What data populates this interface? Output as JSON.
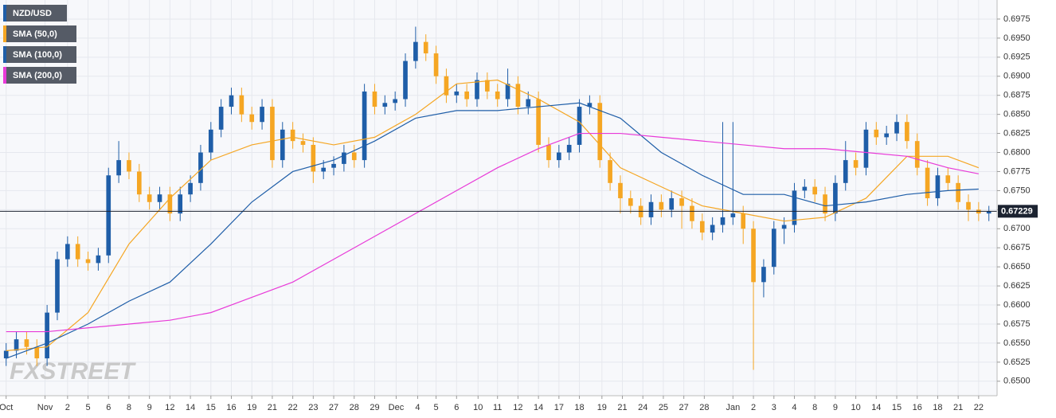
{
  "chart_data": {
    "type": "candlestick",
    "watermark": "FXSTREET",
    "xlim": [
      -0.3,
      48.4
    ],
    "ylim": [
      0.6481,
      0.7
    ],
    "grid": true,
    "legend": "top-left",
    "xticks": [
      {
        "value": 0,
        "label": "Oct"
      },
      {
        "value": 1.9,
        "label": "Nov"
      },
      {
        "value": 3,
        "label": "2"
      },
      {
        "value": 4,
        "label": "5"
      },
      {
        "value": 5,
        "label": "6"
      },
      {
        "value": 6,
        "label": "8"
      },
      {
        "value": 7,
        "label": "9"
      },
      {
        "value": 8,
        "label": "12"
      },
      {
        "value": 9,
        "label": "14"
      },
      {
        "value": 10,
        "label": "15"
      },
      {
        "value": 11,
        "label": "16"
      },
      {
        "value": 12,
        "label": "19"
      },
      {
        "value": 13,
        "label": "21"
      },
      {
        "value": 14,
        "label": "22"
      },
      {
        "value": 15,
        "label": "23"
      },
      {
        "value": 16,
        "label": "27"
      },
      {
        "value": 17,
        "label": "28"
      },
      {
        "value": 18,
        "label": "29"
      },
      {
        "value": 19.05,
        "label": "Dec"
      },
      {
        "value": 20.1,
        "label": "4"
      },
      {
        "value": 21,
        "label": "5"
      },
      {
        "value": 22,
        "label": "6"
      },
      {
        "value": 23.05,
        "label": "10"
      },
      {
        "value": 24,
        "label": "11"
      },
      {
        "value": 25,
        "label": "12"
      },
      {
        "value": 26,
        "label": "14"
      },
      {
        "value": 27,
        "label": "17"
      },
      {
        "value": 28,
        "label": "18"
      },
      {
        "value": 29.1,
        "label": "19"
      },
      {
        "value": 30.1,
        "label": "21"
      },
      {
        "value": 31.1,
        "label": "24"
      },
      {
        "value": 32.1,
        "label": "25"
      },
      {
        "value": 33.1,
        "label": "27"
      },
      {
        "value": 34.1,
        "label": "28"
      },
      {
        "value": 35.5,
        "label": "Jan"
      },
      {
        "value": 36.5,
        "label": "2"
      },
      {
        "value": 37.5,
        "label": "3"
      },
      {
        "value": 38.5,
        "label": "4"
      },
      {
        "value": 39.5,
        "label": "8"
      },
      {
        "value": 40.5,
        "label": "9"
      },
      {
        "value": 41.5,
        "label": "10"
      },
      {
        "value": 42.5,
        "label": "14"
      },
      {
        "value": 43.5,
        "label": "15"
      },
      {
        "value": 44.5,
        "label": "16"
      },
      {
        "value": 45.5,
        "label": "18"
      },
      {
        "value": 46.5,
        "label": "21"
      },
      {
        "value": 47.5,
        "label": "22"
      }
    ],
    "yticks": [
      {
        "value": 0.65,
        "label": "0.6500"
      },
      0.6525,
      {
        "value": 0.655,
        "label": "0.6550"
      },
      0.6575,
      {
        "value": 0.66,
        "label": "0.6600"
      },
      0.6625,
      {
        "value": 0.665,
        "label": "0.6650"
      },
      0.6675,
      {
        "value": 0.67,
        "label": "0.6700"
      },
      0.6725,
      {
        "value": 0.675,
        "label": "0.6750"
      },
      0.6775,
      {
        "value": 0.68,
        "label": "0.6800"
      },
      0.6825,
      {
        "value": 0.685,
        "label": "0.6850"
      },
      0.6875,
      {
        "value": 0.69,
        "label": "0.6900"
      },
      0.6925,
      {
        "value": 0.695,
        "label": "0.6950"
      },
      0.6975
    ],
    "current_price": 0.67229,
    "series": [
      {
        "name": "NZD/USD",
        "color": "#1f5ea8",
        "up_color": "#1f5ea8",
        "down_color": "#f5a623",
        "x": [
          0,
          0.5,
          1,
          1.5,
          2,
          2.5,
          3,
          3.5,
          4,
          4.5,
          5,
          5.5,
          6,
          6.5,
          7,
          7.5,
          8,
          8.5,
          9,
          9.5,
          10,
          10.5,
          11,
          11.5,
          12,
          12.5,
          13,
          13.5,
          14,
          14.5,
          15,
          15.5,
          16,
          16.5,
          17,
          17.5,
          18,
          18.5,
          19,
          19.5,
          20,
          20.5,
          21,
          21.5,
          22,
          22.5,
          23,
          23.5,
          24,
          24.5,
          25,
          25.5,
          26,
          26.5,
          27,
          27.5,
          28,
          28.5,
          29,
          29.5,
          30,
          30.5,
          31,
          31.5,
          32,
          32.5,
          33,
          33.5,
          34,
          34.5,
          35,
          35.5,
          36,
          36.5,
          37,
          37.5,
          38,
          38.5,
          39,
          39.5,
          40,
          40.5,
          41,
          41.5,
          42,
          42.5,
          43,
          43.5,
          44,
          44.5,
          45,
          45.5,
          46,
          46.5,
          47,
          47.5,
          48
        ],
        "open": [
          0.653,
          0.654,
          0.6555,
          0.6545,
          0.653,
          0.659,
          0.666,
          0.668,
          0.666,
          0.6655,
          0.6665,
          0.677,
          0.679,
          0.6775,
          0.6745,
          0.6735,
          0.6745,
          0.672,
          0.6745,
          0.676,
          0.68,
          0.683,
          0.686,
          0.6875,
          0.685,
          0.684,
          0.686,
          0.679,
          0.683,
          0.6815,
          0.681,
          0.6775,
          0.678,
          0.6785,
          0.68,
          0.679,
          0.688,
          0.686,
          0.6865,
          0.687,
          0.692,
          0.6945,
          0.693,
          0.69,
          0.6875,
          0.688,
          0.687,
          0.6895,
          0.688,
          0.687,
          0.689,
          0.686,
          0.687,
          0.681,
          0.679,
          0.68,
          0.681,
          0.686,
          0.6865,
          0.679,
          0.676,
          0.674,
          0.673,
          0.6715,
          0.6735,
          0.6725,
          0.674,
          0.673,
          0.671,
          0.6695,
          0.6705,
          0.6715,
          0.672,
          0.67,
          0.663,
          0.665,
          0.67,
          0.6705,
          0.675,
          0.6755,
          0.6745,
          0.672,
          0.676,
          0.679,
          0.678,
          0.683,
          0.682,
          0.6825,
          0.684,
          0.6815,
          0.678,
          0.674,
          0.677,
          0.676,
          0.6735,
          0.6725,
          0.672
        ],
        "high": [
          0.655,
          0.6565,
          0.6565,
          0.6555,
          0.66,
          0.667,
          0.669,
          0.669,
          0.667,
          0.6675,
          0.678,
          0.6815,
          0.68,
          0.6785,
          0.6755,
          0.6755,
          0.6755,
          0.6755,
          0.677,
          0.681,
          0.684,
          0.687,
          0.6885,
          0.6885,
          0.686,
          0.687,
          0.687,
          0.684,
          0.684,
          0.6825,
          0.682,
          0.679,
          0.6795,
          0.681,
          0.681,
          0.689,
          0.689,
          0.6875,
          0.688,
          0.693,
          0.6965,
          0.6955,
          0.694,
          0.691,
          0.689,
          0.689,
          0.6905,
          0.6905,
          0.689,
          0.691,
          0.69,
          0.688,
          0.688,
          0.682,
          0.681,
          0.682,
          0.687,
          0.6875,
          0.6875,
          0.68,
          0.677,
          0.675,
          0.674,
          0.6745,
          0.6745,
          0.675,
          0.675,
          0.674,
          0.672,
          0.6715,
          0.684,
          0.684,
          0.673,
          0.671,
          0.666,
          0.671,
          0.6715,
          0.676,
          0.6765,
          0.6765,
          0.6755,
          0.677,
          0.6815,
          0.68,
          0.684,
          0.684,
          0.6835,
          0.685,
          0.685,
          0.6825,
          0.679,
          0.678,
          0.678,
          0.677,
          0.6745,
          0.6735,
          0.673
        ],
        "low": [
          0.652,
          0.653,
          0.6535,
          0.652,
          0.652,
          0.658,
          0.665,
          0.665,
          0.6645,
          0.6645,
          0.6655,
          0.676,
          0.6765,
          0.6735,
          0.6725,
          0.6725,
          0.671,
          0.671,
          0.6735,
          0.675,
          0.679,
          0.682,
          0.685,
          0.684,
          0.683,
          0.683,
          0.678,
          0.678,
          0.6805,
          0.68,
          0.676,
          0.6765,
          0.677,
          0.6775,
          0.678,
          0.678,
          0.685,
          0.685,
          0.6855,
          0.686,
          0.691,
          0.692,
          0.689,
          0.6865,
          0.6865,
          0.686,
          0.686,
          0.687,
          0.686,
          0.686,
          0.685,
          0.685,
          0.68,
          0.678,
          0.678,
          0.679,
          0.68,
          0.685,
          0.678,
          0.675,
          0.672,
          0.672,
          0.6705,
          0.6705,
          0.6715,
          0.6715,
          0.67,
          0.67,
          0.6685,
          0.6685,
          0.6695,
          0.6705,
          0.668,
          0.6515,
          0.661,
          0.664,
          0.668,
          0.6695,
          0.674,
          0.6735,
          0.671,
          0.671,
          0.675,
          0.677,
          0.677,
          0.681,
          0.681,
          0.6815,
          0.6805,
          0.677,
          0.673,
          0.673,
          0.675,
          0.6725,
          0.671,
          0.671,
          0.671
        ],
        "close": [
          0.654,
          0.6555,
          0.6545,
          0.653,
          0.659,
          0.666,
          0.668,
          0.666,
          0.6655,
          0.6665,
          0.677,
          0.679,
          0.6775,
          0.6745,
          0.6735,
          0.6745,
          0.672,
          0.6745,
          0.676,
          0.68,
          0.683,
          0.686,
          0.6875,
          0.685,
          0.684,
          0.686,
          0.679,
          0.683,
          0.6815,
          0.681,
          0.6775,
          0.678,
          0.6785,
          0.68,
          0.679,
          0.688,
          0.686,
          0.6865,
          0.687,
          0.692,
          0.6945,
          0.693,
          0.69,
          0.6875,
          0.688,
          0.687,
          0.6895,
          0.688,
          0.687,
          0.689,
          0.686,
          0.687,
          0.681,
          0.679,
          0.68,
          0.681,
          0.686,
          0.6865,
          0.679,
          0.676,
          0.674,
          0.673,
          0.6715,
          0.6735,
          0.6725,
          0.674,
          0.673,
          0.671,
          0.6695,
          0.6705,
          0.6715,
          0.672,
          0.67,
          0.663,
          0.665,
          0.67,
          0.6705,
          0.675,
          0.6755,
          0.6745,
          0.672,
          0.676,
          0.679,
          0.678,
          0.683,
          0.682,
          0.6825,
          0.684,
          0.6815,
          0.678,
          0.674,
          0.677,
          0.676,
          0.6735,
          0.6725,
          0.672,
          0.6723
        ]
      },
      {
        "name": "SMA (50,0)",
        "color": "#f5a623",
        "x": [
          0,
          2,
          4,
          6,
          8,
          10,
          12,
          14,
          16,
          18,
          20,
          22,
          24,
          26,
          28,
          30,
          32,
          34,
          36,
          38,
          40,
          42,
          44,
          46,
          47.5
        ],
        "values": [
          0.654,
          0.6545,
          0.659,
          0.668,
          0.674,
          0.679,
          0.681,
          0.682,
          0.681,
          0.682,
          0.685,
          0.689,
          0.6895,
          0.687,
          0.684,
          0.678,
          0.6755,
          0.673,
          0.672,
          0.671,
          0.6715,
          0.674,
          0.6795,
          0.6795,
          0.678
        ]
      },
      {
        "name": "SMA (100,0)",
        "color": "#1f5ea8",
        "x": [
          0,
          2,
          4,
          6,
          8,
          10,
          12,
          14,
          16,
          18,
          20,
          22,
          24,
          26,
          28,
          30,
          32,
          34,
          36,
          38,
          40,
          42,
          44,
          46,
          47.5
        ],
        "values": [
          0.653,
          0.655,
          0.6575,
          0.6605,
          0.663,
          0.668,
          0.6735,
          0.6775,
          0.679,
          0.6815,
          0.6845,
          0.6855,
          0.6855,
          0.686,
          0.6865,
          0.6845,
          0.68,
          0.677,
          0.6745,
          0.6745,
          0.673,
          0.6735,
          0.6745,
          0.675,
          0.6752
        ]
      },
      {
        "name": "SMA (200,0)",
        "color": "#e83ad8",
        "x": [
          0,
          2,
          4,
          6,
          8,
          10,
          12,
          14,
          16,
          18,
          20,
          22,
          24,
          26,
          28,
          30,
          32,
          34,
          36,
          38,
          40,
          42,
          44,
          46,
          47.5
        ],
        "values": [
          0.6565,
          0.6565,
          0.657,
          0.6575,
          0.658,
          0.659,
          0.661,
          0.663,
          0.666,
          0.669,
          0.672,
          0.675,
          0.678,
          0.6805,
          0.6825,
          0.6825,
          0.682,
          0.6815,
          0.681,
          0.6805,
          0.6805,
          0.68,
          0.6795,
          0.678,
          0.6772
        ]
      }
    ]
  }
}
